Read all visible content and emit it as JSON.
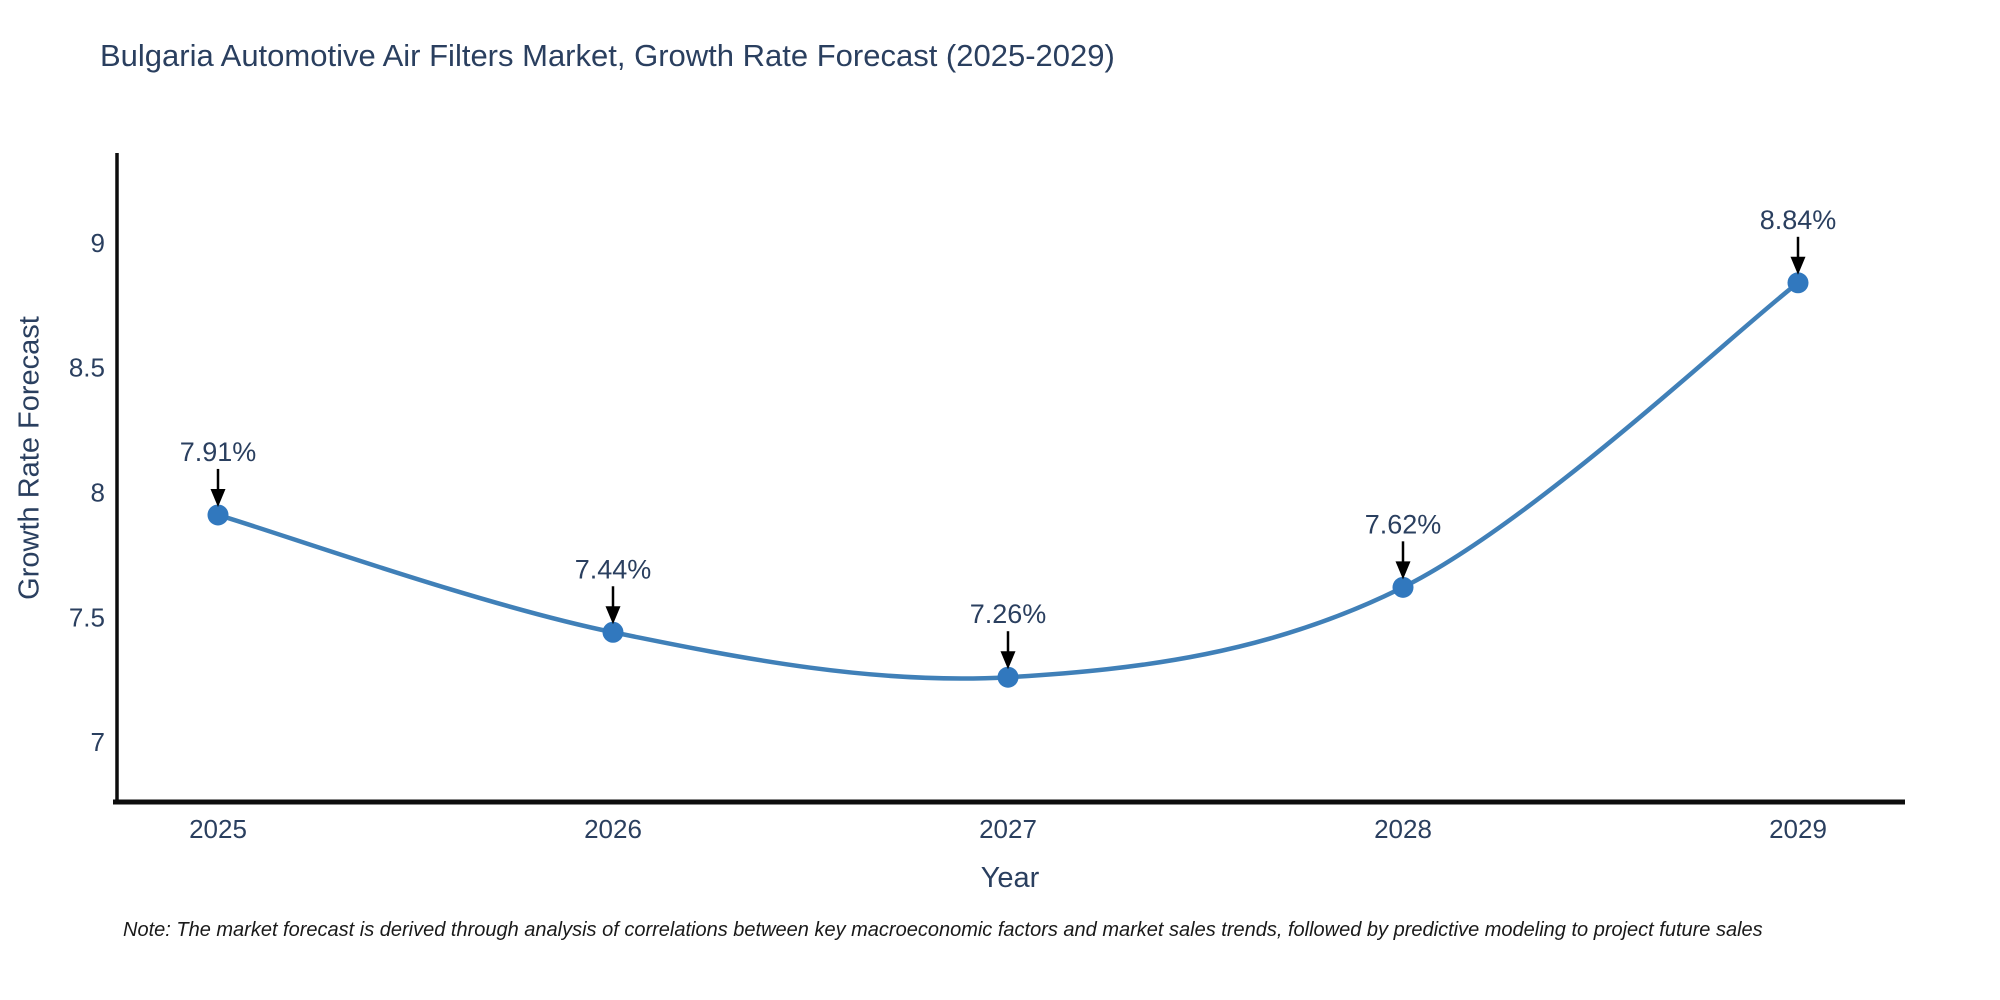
{
  "note": "Note: The market forecast is derived through analysis of correlations between key macroeconomic factors and market sales trends, followed by predictive modeling to project future sales",
  "chart_data": {
    "type": "line",
    "title": "Bulgaria Automotive Air Filters Market, Growth Rate Forecast (2025-2029)",
    "x": [
      "2025",
      "2026",
      "2027",
      "2028",
      "2029"
    ],
    "series": [
      {
        "name": "Growth Rate Forecast",
        "values": [
          7.91,
          7.44,
          7.26,
          7.62,
          8.84
        ]
      }
    ],
    "point_labels": [
      "7.91%",
      "7.44%",
      "7.26%",
      "7.62%",
      "8.84%"
    ],
    "xlabel": "Year",
    "ylabel": "Growth Rate Forecast",
    "yticks": [
      "7",
      "7.5",
      "8",
      "8.5",
      "9"
    ],
    "ytick_values": [
      7,
      7.5,
      8,
      8.5,
      9
    ],
    "ylim": [
      6.76,
      9.36
    ],
    "line_shape": "spline",
    "grid": false,
    "legend": "none",
    "annotation_arrows": true,
    "colors": {
      "line": "#4080b8",
      "marker": "#3178be",
      "arrow": "#000000",
      "text": "#2a3f5f",
      "axis": "#0d0d0d"
    }
  }
}
